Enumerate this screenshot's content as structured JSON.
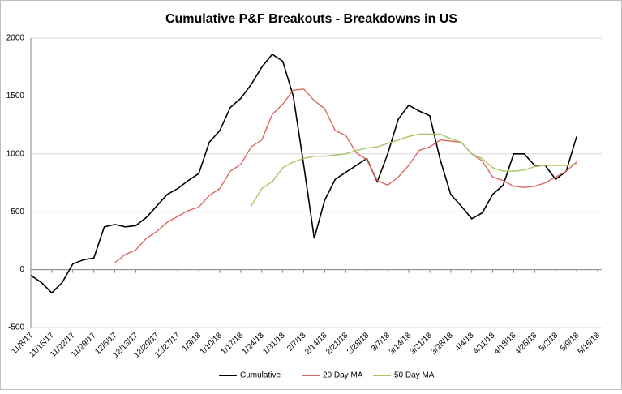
{
  "chart_data": {
    "type": "line",
    "title": "Cumulative P&F Breakouts - Breakdowns in US",
    "categories": [
      "11/8/17",
      null,
      "11/15/17",
      null,
      "11/22/17",
      null,
      "11/29/17",
      null,
      "12/6/17",
      null,
      "12/13/17",
      null,
      "12/20/17",
      null,
      "12/27/17",
      null,
      "1/3/18",
      null,
      "1/10/18",
      null,
      "1/17/18",
      null,
      "1/24/18",
      null,
      "1/31/18",
      null,
      "2/7/18",
      null,
      "2/14/18",
      null,
      "2/21/18",
      null,
      "2/28/18",
      null,
      "3/7/18",
      null,
      "3/14/18",
      null,
      "3/21/18",
      null,
      "3/28/18",
      null,
      "4/4/18",
      null,
      "4/11/18",
      null,
      "4/18/18",
      null,
      "4/25/18",
      null,
      "5/2/18",
      null,
      "5/9/18",
      null,
      "5/16/18"
    ],
    "series": [
      {
        "name": "Cumulative",
        "color": "#000000",
        "values": [
          -50,
          -110,
          -200,
          -110,
          50,
          85,
          100,
          370,
          390,
          370,
          380,
          450,
          550,
          650,
          700,
          770,
          830,
          1100,
          1200,
          1400,
          1480,
          1600,
          1750,
          1860,
          1800,
          1500,
          900,
          270,
          600,
          780,
          840,
          900,
          960,
          760,
          1000,
          1300,
          1420,
          1370,
          1330,
          950,
          650,
          550,
          440,
          490,
          650,
          730,
          1000,
          1000,
          900,
          900,
          780,
          850,
          1150,
          null,
          null
        ]
      },
      {
        "name": "20 Day MA",
        "color": "#d9695f",
        "values": [
          null,
          null,
          null,
          null,
          null,
          null,
          null,
          null,
          60,
          130,
          170,
          270,
          330,
          410,
          460,
          510,
          540,
          640,
          700,
          850,
          910,
          1060,
          1120,
          1340,
          1430,
          1550,
          1560,
          1460,
          1390,
          1200,
          1160,
          1010,
          950,
          770,
          730,
          800,
          900,
          1030,
          1060,
          1120,
          1110,
          1100,
          1000,
          940,
          800,
          770,
          720,
          710,
          720,
          750,
          800,
          850,
          930,
          null,
          null
        ]
      },
      {
        "name": "50 Day MA",
        "color": "#a5c765",
        "values": [
          null,
          null,
          null,
          null,
          null,
          null,
          null,
          null,
          null,
          null,
          null,
          null,
          null,
          null,
          null,
          null,
          null,
          null,
          null,
          null,
          null,
          550,
          700,
          760,
          880,
          930,
          960,
          980,
          980,
          990,
          1000,
          1030,
          1050,
          1060,
          1090,
          1120,
          1150,
          1170,
          1170,
          1170,
          1130,
          1100,
          1000,
          960,
          880,
          850,
          850,
          860,
          890,
          900,
          900,
          900,
          910,
          null,
          null
        ]
      }
    ],
    "ylim": [
      -500,
      2000
    ],
    "yticks": [
      -500,
      0,
      500,
      1000,
      1500,
      2000
    ],
    "grid": true,
    "legend": "bottom"
  }
}
